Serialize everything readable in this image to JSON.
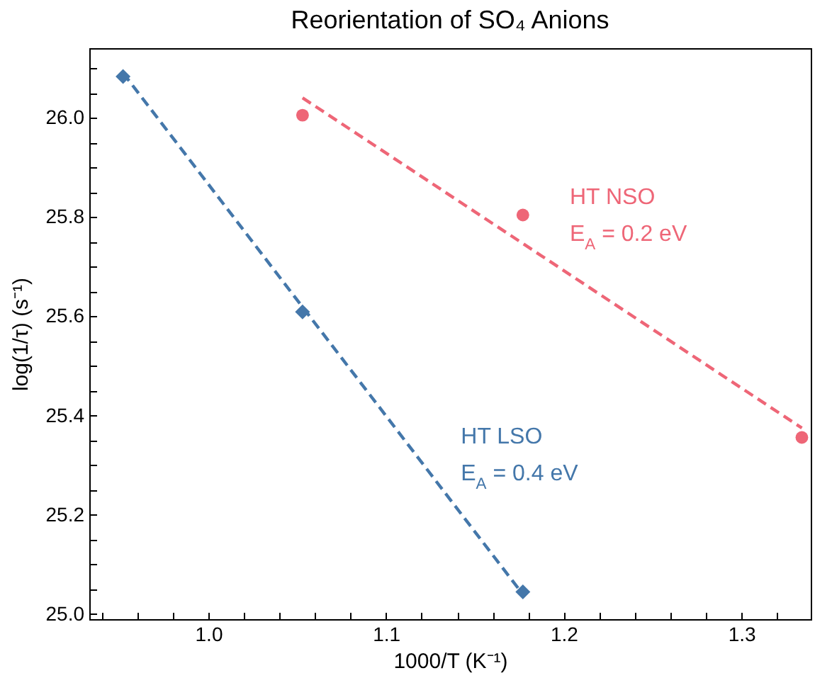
{
  "chart_data": {
    "type": "scatter",
    "title": "Reorientation of SO₄ Anions",
    "xlabel": "1000/T (K⁻¹)",
    "ylabel": "log(1/τ) (s⁻¹)",
    "xlim": [
      0.933,
      1.339
    ],
    "ylim": [
      24.99,
      26.14
    ],
    "xticks": [
      {
        "value": 0.94,
        "label": null
      },
      {
        "value": 0.96,
        "label": null
      },
      {
        "value": 0.98,
        "label": null
      },
      {
        "value": 1.0,
        "label": "1.0"
      },
      {
        "value": 1.02,
        "label": null
      },
      {
        "value": 1.04,
        "label": null
      },
      {
        "value": 1.06,
        "label": null
      },
      {
        "value": 1.08,
        "label": null
      },
      {
        "value": 1.1,
        "label": "1.1"
      },
      {
        "value": 1.12,
        "label": null
      },
      {
        "value": 1.14,
        "label": null
      },
      {
        "value": 1.16,
        "label": null
      },
      {
        "value": 1.18,
        "label": null
      },
      {
        "value": 1.2,
        "label": "1.2"
      },
      {
        "value": 1.22,
        "label": null
      },
      {
        "value": 1.24,
        "label": null
      },
      {
        "value": 1.26,
        "label": null
      },
      {
        "value": 1.28,
        "label": null
      },
      {
        "value": 1.3,
        "label": "1.3"
      },
      {
        "value": 1.32,
        "label": null
      }
    ],
    "yticks": [
      {
        "value": 25.0,
        "label": "25.0"
      },
      {
        "value": 25.05,
        "label": null
      },
      {
        "value": 25.1,
        "label": null
      },
      {
        "value": 25.15,
        "label": null
      },
      {
        "value": 25.2,
        "label": "25.2"
      },
      {
        "value": 25.25,
        "label": null
      },
      {
        "value": 25.3,
        "label": null
      },
      {
        "value": 25.35,
        "label": null
      },
      {
        "value": 25.4,
        "label": "25.4"
      },
      {
        "value": 25.45,
        "label": null
      },
      {
        "value": 25.5,
        "label": null
      },
      {
        "value": 25.55,
        "label": null
      },
      {
        "value": 25.6,
        "label": "25.6"
      },
      {
        "value": 25.65,
        "label": null
      },
      {
        "value": 25.7,
        "label": null
      },
      {
        "value": 25.75,
        "label": null
      },
      {
        "value": 25.8,
        "label": "25.8"
      },
      {
        "value": 25.85,
        "label": null
      },
      {
        "value": 25.9,
        "label": null
      },
      {
        "value": 25.95,
        "label": null
      },
      {
        "value": 26.0,
        "label": "26.0"
      },
      {
        "value": 26.05,
        "label": null
      },
      {
        "value": 26.1,
        "label": null
      }
    ],
    "grid": false,
    "series": [
      {
        "type": "line",
        "color": "#4477aa",
        "line_style": "dashed",
        "marker": "none",
        "x": [
          0.952,
          1.177
        ],
        "values": [
          26.09,
          25.04
        ]
      },
      {
        "type": "line",
        "color": "#ee6677",
        "line_style": "dashed",
        "marker": "none",
        "x": [
          1.053,
          1.334
        ],
        "values": [
          26.04,
          25.375
        ]
      },
      {
        "type": "scatter",
        "name": "HT LSO",
        "color": "#4477aa",
        "marker": "diamond",
        "x": [
          0.952,
          1.053,
          1.177
        ],
        "values": [
          26.083,
          25.609,
          25.045
        ]
      },
      {
        "type": "scatter",
        "name": "HT NSO",
        "color": "#ee6677",
        "marker": "circle",
        "x": [
          1.053,
          1.177,
          1.334
        ],
        "values": [
          26.005,
          25.804,
          25.356
        ]
      }
    ],
    "annotations": [
      "E$_{A}$ = 0.4 eV",
      "E$_{A}$ = 0.2 eV"
    ]
  }
}
